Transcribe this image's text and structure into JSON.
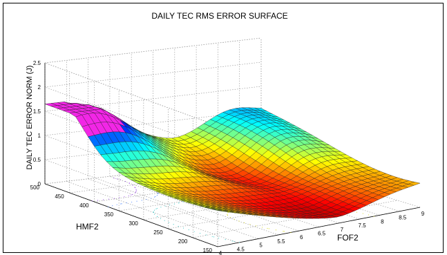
{
  "chart_data": {
    "type": "surface",
    "title": "DAILY TEC RMS ERROR SURFACE",
    "xlabel": "FOF2",
    "ylabel": "HMF2",
    "zlabel": "DAILY TEC ERROR NORM (J)",
    "x_ticks": [
      "4",
      "4.5",
      "5",
      "5.5",
      "6",
      "6.5",
      "7",
      "7.5",
      "8",
      "8.5",
      "9"
    ],
    "y_ticks": [
      "150",
      "200",
      "250",
      "300",
      "350",
      "400",
      "450",
      "500"
    ],
    "z_ticks": [
      "0",
      "0.5",
      "1",
      "1.5",
      "2",
      "2.5"
    ],
    "xlim": [
      4,
      9
    ],
    "ylim": [
      150,
      500
    ],
    "zlim": [
      0,
      2.5
    ],
    "colormap": "jet",
    "grid": true,
    "contours_on_floor": true,
    "z_min_approx": 0.05,
    "z_max_approx": 1.6,
    "min_location_approx": {
      "fof2": 7.0,
      "hmf2": 250
    }
  }
}
